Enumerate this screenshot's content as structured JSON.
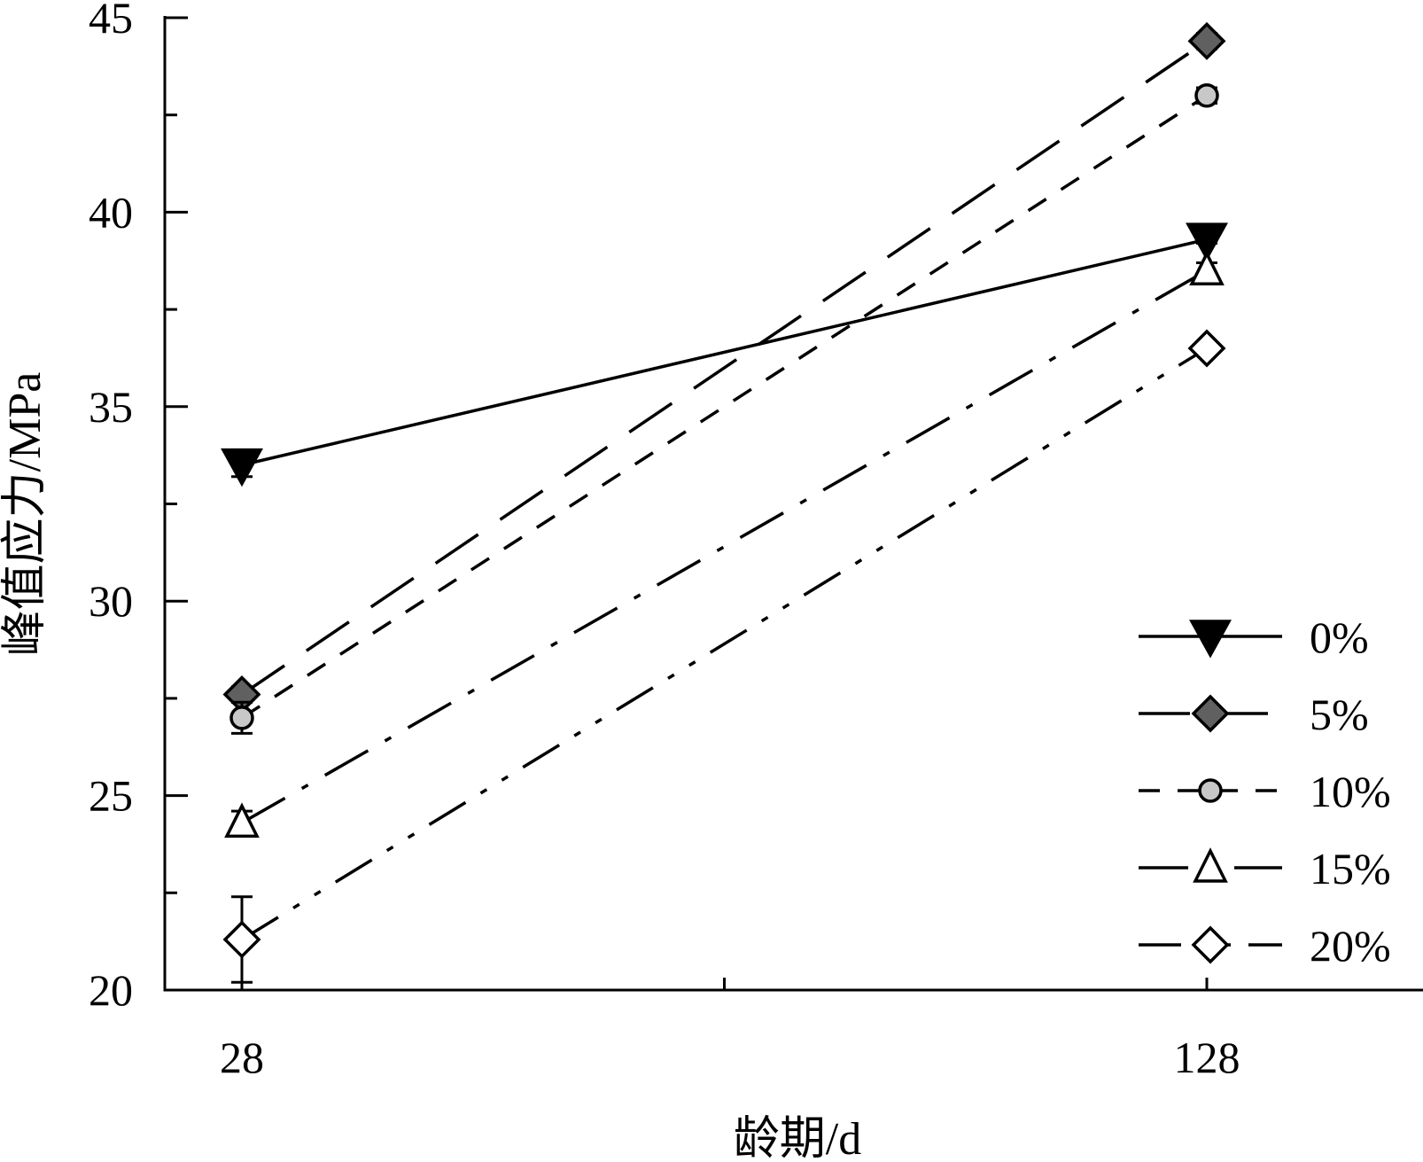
{
  "chart_data": {
    "type": "line",
    "xlabel": "龄期/d",
    "ylabel": "峰值应力/MPa",
    "categories": [
      "28",
      "128"
    ],
    "ylim": [
      20,
      45
    ],
    "yticks": [
      "20",
      "25",
      "30",
      "35",
      "40",
      "45"
    ],
    "legend_position": "bottom-right",
    "grid": false,
    "series": [
      {
        "name": "0%",
        "values": [
          33.5,
          39.3
        ],
        "error": [
          0.3,
          0.1
        ],
        "marker": "triangle-down-filled",
        "line_style": "solid",
        "marker_color": "#000000"
      },
      {
        "name": "5%",
        "values": [
          27.6,
          44.4
        ],
        "error": [
          0.2,
          0.2
        ],
        "marker": "diamond-filled",
        "line_style": "long-dash",
        "marker_color": "#606060"
      },
      {
        "name": "10%",
        "values": [
          27.0,
          43.0
        ],
        "error": [
          0.4,
          0.2
        ],
        "marker": "circle-filled",
        "line_style": "short-dash",
        "marker_color": "#c8c8c8"
      },
      {
        "name": "15%",
        "values": [
          24.3,
          38.5
        ],
        "error": [
          0.3,
          0.2
        ],
        "marker": "triangle-up-open",
        "line_style": "dash-dot",
        "marker_color": "#ffffff"
      },
      {
        "name": "20%",
        "values": [
          21.3,
          36.5
        ],
        "error": [
          1.1,
          0.1
        ],
        "marker": "diamond-open",
        "line_style": "dash-dot-dot",
        "marker_color": "#ffffff"
      }
    ]
  }
}
